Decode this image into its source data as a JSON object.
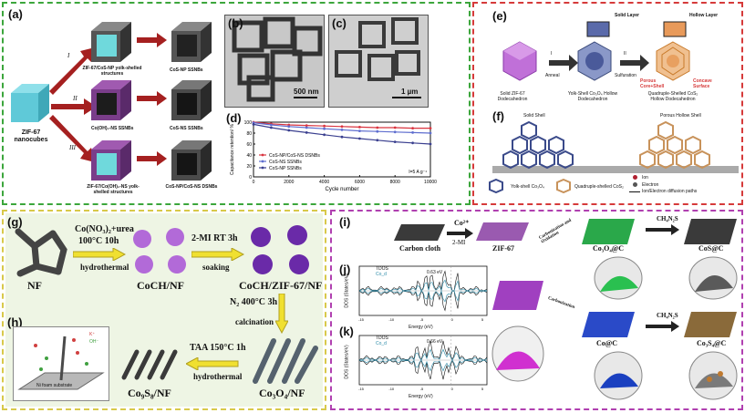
{
  "panel_a": {
    "label": "(a)",
    "start_cube": "ZIF-67 nanocubes",
    "routes": [
      "I",
      "II",
      "III"
    ],
    "top_inter": "ZIF-67/CoS-NP yolk-shelled structures",
    "top_final": "CoS-NP SSNBs",
    "mid_inter": "Co(OH)₂-NS SSNBs",
    "mid_final": "CoS-NS SSNBs",
    "bot_inter": "ZIF-67/Co(OH)₂-NS yolk-shelled structures",
    "bot_final": "CoS-NP/CoS-NS DSNBs"
  },
  "panel_b": {
    "label": "(b)",
    "scale": "500 nm"
  },
  "panel_c": {
    "label": "(c)",
    "scale": "1 µm"
  },
  "panel_d": {
    "label": "(d)"
  },
  "chart_data": {
    "type": "line",
    "xlabel": "Cycle number",
    "ylabel": "Capacitance retention/ %",
    "xlim": [
      0,
      10000
    ],
    "ylim": [
      0,
      100
    ],
    "xticks": [
      0,
      2000,
      4000,
      6000,
      8000,
      10000
    ],
    "yticks": [
      0,
      20,
      40,
      60,
      80,
      100
    ],
    "annotation": "I=5 A g⁻¹",
    "x": [
      0,
      1000,
      2000,
      3000,
      4000,
      5000,
      6000,
      7000,
      8000,
      9000,
      10000
    ],
    "series": [
      {
        "name": "CoS-NP/CoS-NS DSNBs",
        "color": "#d9343f",
        "values": [
          100,
          97,
          95,
          94,
          93,
          92,
          91,
          90,
          90,
          89,
          89
        ]
      },
      {
        "name": "CoS-NS SSNBs",
        "color": "#5f6ecf",
        "values": [
          99,
          95,
          92,
          90,
          88,
          86,
          84,
          83,
          82,
          81,
          80
        ]
      },
      {
        "name": "CoS-NP SSNBs",
        "color": "#3a3f8f",
        "values": [
          96,
          90,
          85,
          81,
          77,
          73,
          70,
          67,
          64,
          62,
          60
        ]
      }
    ]
  },
  "panel_e": {
    "label": "(e)",
    "solid_layer": "Solid Layer",
    "hollow_layer": "Hollow Layer",
    "step1_num": "I",
    "step1": "Anneal",
    "step2_num": "II",
    "step2": "Sulfuration",
    "porous": "Porous Core+Shell",
    "concave": "Concave Surface",
    "cap1": "Solid ZIF-67 Dodecahedron",
    "cap2": "Yolk-Shell Co₃O₄ Hollow Dodecahedron",
    "cap3": "Quadruple-Shelled CoS₂ Hollow Dodecahedron"
  },
  "panel_f": {
    "label": "(f)",
    "solid_shell": "Solid Shell",
    "porous_shell": "Porous Hollow Shell",
    "legend1": "Yolk-shell Co₃O₄",
    "legend2": "Quadruple-shelled CoS₂",
    "legend_ion": "Ion",
    "legend_electron": "Electron",
    "legend_path": "Ion/Electron diffusion paths"
  },
  "panel_g": {
    "label": "(g)",
    "cond1": "Co(NO₃)₂+urea",
    "cond1b": "100°C 10h",
    "hydro1": "hydrothermal",
    "nf": "NF",
    "coch": "CoCH/NF",
    "cond2": "2-MI  RT 3h",
    "soak": "soaking",
    "cochzif": "CoCH/ZIF-67/NF",
    "cond3": "N₂  400°C 3h",
    "calc": "calcination",
    "co3o4": "Co₃O₄/NF",
    "cond4": "TAA 150°C 1h",
    "hydro2": "hydrothermal",
    "co9s8": "Co₉S₈/NF"
  },
  "panel_h": {
    "label": "(h)",
    "k": "K⁺",
    "oh": "OH⁻",
    "substrate": "Ni foam substrate"
  },
  "panel_i": {
    "label": "(i)",
    "cloth": "Carbon cloth",
    "co": "Co²⁺",
    "mi": "2-MI",
    "zif": "ZIF-67",
    "carb_ox": "Carbonization and Oxidation",
    "co3o4c": "Co₃O₄@C",
    "ch4n2s_1": "CH₄N₂S",
    "cosc": "CoS@C",
    "carb": "Carbonization",
    "coc": "Co@C",
    "ch4n2s_2": "CH₄N₂S",
    "co3s4c": "Co₃S₄@C"
  },
  "panel_j": {
    "label": "(j)",
    "leg1": "TDOS",
    "leg2": "Co_d",
    "ann": "0.63 eV",
    "xlabel": "Energy (eV)",
    "ylabel": "DOS (States/eV)",
    "xticks": [
      "-15",
      "-10",
      "-5",
      "0",
      "5"
    ]
  },
  "panel_k": {
    "label": "(k)",
    "leg1": "TDOS",
    "leg2": "Co_d",
    "ann": "0.66 eV",
    "xlabel": "Energy (eV)",
    "ylabel": "DOS (States/eV)",
    "xticks": [
      "-15",
      "-10",
      "-5",
      "0",
      "5"
    ]
  },
  "colors": {
    "green": "#3ca63c",
    "red": "#d63a3a",
    "yellow": "#d8c94a",
    "magenta": "#b040b0"
  }
}
